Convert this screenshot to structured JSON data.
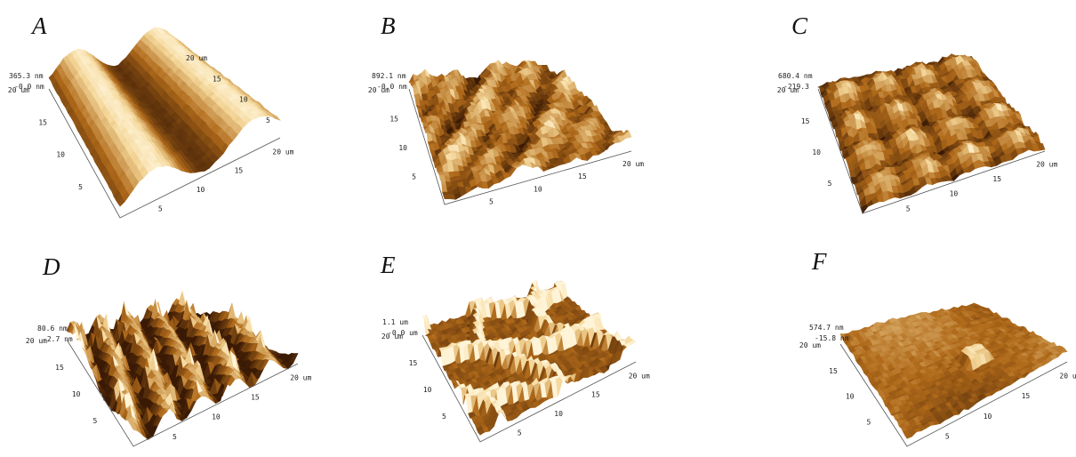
{
  "panels": [
    {
      "id": "A",
      "letter": "A",
      "z_max": "365.3 nm",
      "z_min": "-0.0 nm",
      "left_ticks": [
        "20 um",
        "15",
        "10",
        "5"
      ],
      "right_ticks": [
        "20 um",
        "15",
        "10",
        "5"
      ],
      "front_ticks": [
        "5",
        "10",
        "15",
        "20 um"
      ],
      "texture": "ridges"
    },
    {
      "id": "B",
      "letter": "B",
      "z_max": "892.1 nm",
      "z_min": "-0.0 nm",
      "left_ticks": [
        "20 um",
        "15",
        "10",
        "5"
      ],
      "right_ticks": [],
      "front_ticks": [
        "5",
        "10",
        "15",
        "20 um"
      ],
      "texture": "rough"
    },
    {
      "id": "C",
      "letter": "C",
      "z_max": "680.4 nm",
      "z_min": "-219.3",
      "left_ticks": [
        "20 um",
        "15",
        "10",
        "5"
      ],
      "right_ticks": [],
      "front_ticks": [
        "5",
        "10",
        "15",
        "20 um"
      ],
      "texture": "cells"
    },
    {
      "id": "D",
      "letter": "D",
      "z_max": "80.6 nm",
      "z_min": "-2.7 nm",
      "left_ticks": [
        "20 um",
        "15",
        "10",
        "5"
      ],
      "right_ticks": [],
      "front_ticks": [
        "5",
        "10",
        "15",
        "20 um"
      ],
      "texture": "spikes"
    },
    {
      "id": "E",
      "letter": "E",
      "z_max": "1.1 um",
      "z_min": "-0.0 um",
      "left_ticks": [
        "20 um",
        "15",
        "10",
        "5"
      ],
      "right_ticks": [],
      "front_ticks": [
        "5",
        "10",
        "15",
        "20 um"
      ],
      "texture": "network"
    },
    {
      "id": "F",
      "letter": "F",
      "z_max": "574.7 nm",
      "z_min": "-15.8 nm",
      "left_ticks": [
        "20 um",
        "15",
        "10",
        "5"
      ],
      "right_ticks": [],
      "front_ticks": [
        "5",
        "10",
        "15",
        "20 um"
      ],
      "texture": "smooth"
    }
  ],
  "colors": {
    "afm_dark": "#3a1a05",
    "afm_mid": "#b06a1a",
    "afm_light": "#f4d79a",
    "afm_highlight": "#fff4d8"
  }
}
